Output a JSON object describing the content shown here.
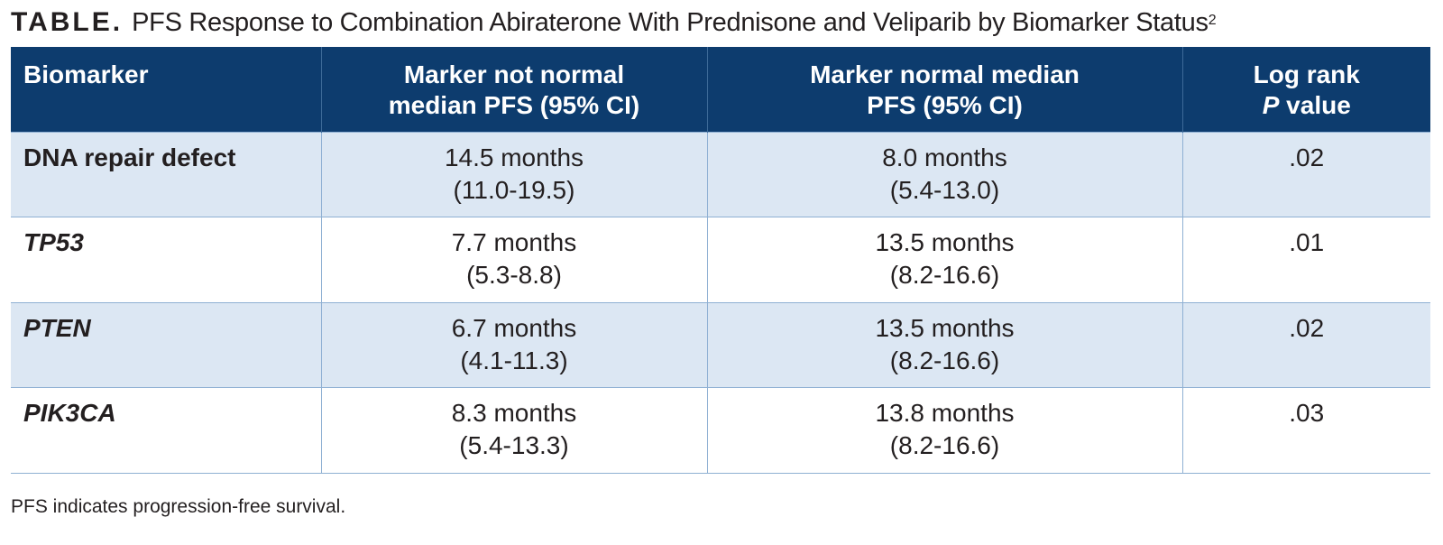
{
  "title": {
    "label": "TABLE.",
    "text": "PFS Response to Combination Abiraterone With Prednisone and Veliparib by Biomarker Status",
    "superscript": "2"
  },
  "table": {
    "headers": {
      "biomarker": "Biomarker",
      "not_normal_line1": "Marker not normal",
      "not_normal_line2": "median PFS (95% CI)",
      "normal_line1": "Marker normal median",
      "normal_line2": "PFS (95% CI)",
      "p_line1": "Log rank",
      "p_italic": "P",
      "p_line2_rest": " value"
    },
    "rows": [
      {
        "biomarker": "DNA repair defect",
        "not_normal_median": "14.5 months",
        "not_normal_ci": "(11.0-19.5)",
        "normal_median": "8.0 months",
        "normal_ci": "(5.4-13.0)",
        "p": ".02"
      },
      {
        "biomarker": "TP53",
        "not_normal_median": "7.7 months",
        "not_normal_ci": "(5.3-8.8)",
        "normal_median": "13.5 months",
        "normal_ci": "(8.2-16.6)",
        "p": ".01"
      },
      {
        "biomarker": "PTEN",
        "not_normal_median": "6.7 months",
        "not_normal_ci": "(4.1-11.3)",
        "normal_median": "13.5 months",
        "normal_ci": "(8.2-16.6)",
        "p": ".02"
      },
      {
        "biomarker": "PIK3CA",
        "not_normal_median": "8.3 months",
        "not_normal_ci": "(5.4-13.3)",
        "normal_median": "13.8 months",
        "normal_ci": "(8.2-16.6)",
        "p": ".03"
      }
    ]
  },
  "footnote": "PFS indicates progression-free survival.",
  "colors": {
    "header_bg": "#0d3c6e",
    "shaded_row_bg": "#dce7f3",
    "rule": "#8fb0d3"
  }
}
